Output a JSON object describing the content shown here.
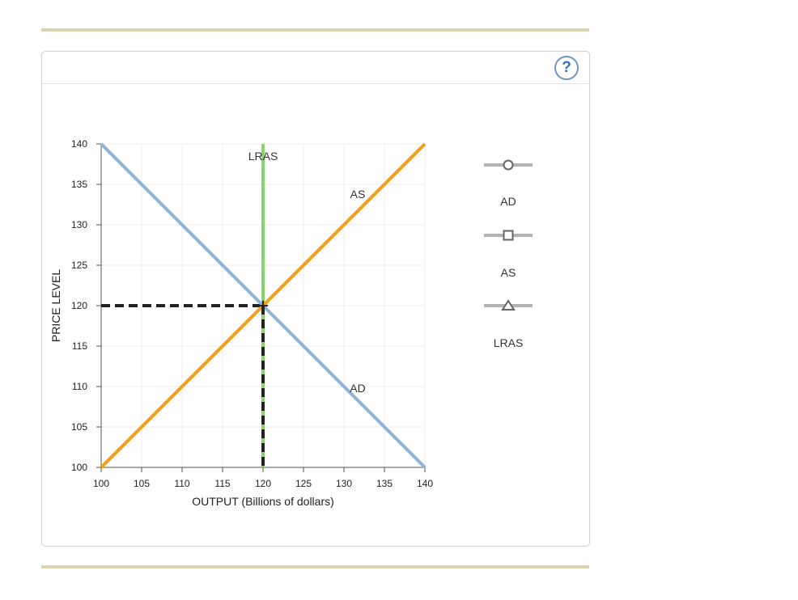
{
  "help_button": {
    "label": "?"
  },
  "legend": [
    {
      "label": "AD",
      "marker": "circle"
    },
    {
      "label": "AS",
      "marker": "square"
    },
    {
      "label": "LRAS",
      "marker": "triangle"
    }
  ],
  "colors": {
    "ad": "#8fb4d9",
    "as": "#f0a020",
    "lras": "#8ad36a",
    "guide": "#222222",
    "legend_gray": "#b3b3b3",
    "rule": "#ddd3ae"
  },
  "chart_data": {
    "type": "line",
    "xlabel": "OUTPUT (Billions of dollars)",
    "ylabel": "PRICE LEVEL",
    "xlim": [
      100,
      140
    ],
    "ylim": [
      100,
      140
    ],
    "x_ticks": [
      "100",
      "105",
      "110",
      "115",
      "120",
      "125",
      "130",
      "135",
      "140"
    ],
    "y_ticks": [
      "100",
      "105",
      "110",
      "115",
      "120",
      "125",
      "130",
      "135",
      "140"
    ],
    "grid": true,
    "series": [
      {
        "name": "AD",
        "x": [
          100,
          140
        ],
        "y": [
          140,
          100
        ]
      },
      {
        "name": "AS",
        "x": [
          100,
          140
        ],
        "y": [
          100,
          140
        ]
      },
      {
        "name": "LRAS",
        "x": [
          120,
          120
        ],
        "y": [
          100,
          140
        ]
      }
    ],
    "curve_labels": [
      {
        "text": "LRAS",
        "x": 120,
        "y": 138.5
      },
      {
        "text": "AS",
        "x": 131.7,
        "y": 133.8
      },
      {
        "text": "AD",
        "x": 131.7,
        "y": 109.8
      }
    ],
    "equilibrium": {
      "x": 120,
      "y": 120
    }
  }
}
